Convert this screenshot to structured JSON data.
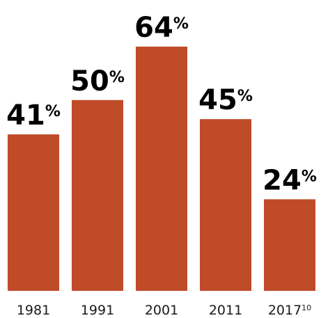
{
  "chart_data": {
    "type": "bar",
    "categories": [
      "1981",
      "1991",
      "2001",
      "2011",
      "2017"
    ],
    "category_superscripts": [
      "",
      "",
      "",
      "",
      "10"
    ],
    "values": [
      41,
      50,
      64,
      45,
      24
    ],
    "value_labels": [
      "41",
      "50",
      "64",
      "45",
      "24"
    ],
    "value_suffix": "%",
    "ylim": [
      0,
      64
    ],
    "grid": false,
    "title": "",
    "xlabel": "",
    "ylabel": "",
    "colors": {
      "bar": "#BF4B28",
      "label": "#000000",
      "tick": "#1A1A1A"
    }
  }
}
